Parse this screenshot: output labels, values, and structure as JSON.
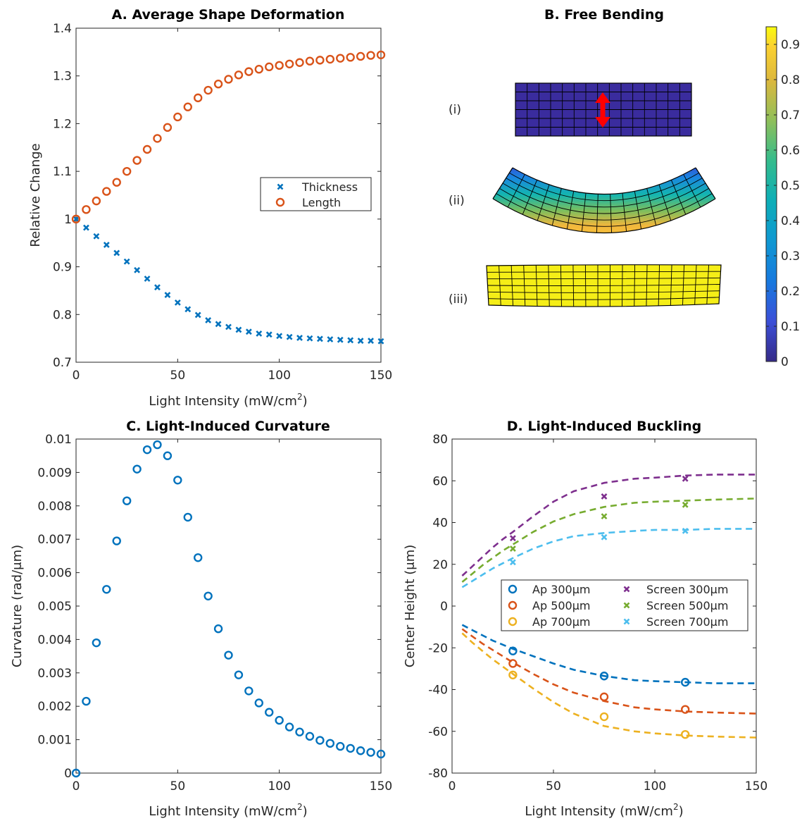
{
  "chart_data": [
    {
      "id": "A",
      "type": "scatter",
      "title": "A. Average Shape Deformation",
      "xlabel": "Light Intensity (mW/cm",
      "xlabel_sup": "2",
      "xlabel_end": ")",
      "ylabel": "Relative Change",
      "xlim": [
        0,
        150
      ],
      "ylim": [
        0.7,
        1.4
      ],
      "xticks": [
        0,
        50,
        100,
        150
      ],
      "yticks": [
        0.7,
        0.8,
        0.9,
        1,
        1.1,
        1.2,
        1.3,
        1.4
      ],
      "ytick_labels": [
        "0.7",
        "0.8",
        "0.9",
        "1",
        "1.1",
        "1.2",
        "1.3",
        "1.4"
      ],
      "legend_position": "right",
      "series": [
        {
          "name": "Thickness",
          "marker": "x",
          "color": "#0072BD",
          "x": [
            0,
            5,
            10,
            15,
            20,
            25,
            30,
            35,
            40,
            45,
            50,
            55,
            60,
            65,
            70,
            75,
            80,
            85,
            90,
            95,
            100,
            105,
            110,
            115,
            120,
            125,
            130,
            135,
            140,
            145,
            150
          ],
          "y": [
            1.0,
            0.982,
            0.964,
            0.946,
            0.929,
            0.911,
            0.893,
            0.875,
            0.857,
            0.841,
            0.825,
            0.811,
            0.799,
            0.788,
            0.78,
            0.774,
            0.768,
            0.764,
            0.76,
            0.758,
            0.755,
            0.753,
            0.751,
            0.75,
            0.749,
            0.748,
            0.747,
            0.746,
            0.745,
            0.745,
            0.744
          ]
        },
        {
          "name": "Length",
          "marker": "o",
          "color": "#D95319",
          "x": [
            0,
            5,
            10,
            15,
            20,
            25,
            30,
            35,
            40,
            45,
            50,
            55,
            60,
            65,
            70,
            75,
            80,
            85,
            90,
            95,
            100,
            105,
            110,
            115,
            120,
            125,
            130,
            135,
            140,
            145,
            150
          ],
          "y": [
            1.0,
            1.02,
            1.038,
            1.058,
            1.077,
            1.1,
            1.123,
            1.146,
            1.169,
            1.192,
            1.214,
            1.235,
            1.254,
            1.27,
            1.283,
            1.293,
            1.302,
            1.309,
            1.314,
            1.319,
            1.322,
            1.325,
            1.328,
            1.331,
            1.333,
            1.335,
            1.337,
            1.339,
            1.341,
            1.343,
            1.344
          ]
        }
      ]
    },
    {
      "id": "B",
      "type": "heatmap",
      "title": "B. Free Bending",
      "rows": [
        {
          "label": "(i)",
          "color_value": 0.0,
          "shape": "flat",
          "arrow": true
        },
        {
          "label": "(ii)",
          "color_gradient": [
            0.0,
            0.9
          ],
          "shape": "bent",
          "arrow": false
        },
        {
          "label": "(iii)",
          "color_value": 0.95,
          "shape": "flat",
          "arrow": false
        }
      ],
      "colorbar": {
        "min": 0,
        "max": 0.95,
        "ticks": [
          0,
          0.1,
          0.2,
          0.3,
          0.4,
          0.5,
          0.6,
          0.7,
          0.8,
          0.9
        ],
        "tick_labels": [
          "0",
          "0.1",
          "0.2",
          "0.3",
          "0.4",
          "0.5",
          "0.6",
          "0.7",
          "0.8",
          "0.9"
        ],
        "colormap": "parula"
      }
    },
    {
      "id": "C",
      "type": "scatter",
      "title": "C.  Light-Induced Curvature",
      "xlabel": "Light Intensity (mW/cm",
      "xlabel_sup": "2",
      "xlabel_end": ")",
      "ylabel": "Curvature (rad/μm)",
      "xlim": [
        0,
        150
      ],
      "ylim": [
        0,
        0.01
      ],
      "xticks": [
        0,
        50,
        100,
        150
      ],
      "yticks": [
        0,
        0.001,
        0.002,
        0.003,
        0.004,
        0.005,
        0.006,
        0.007,
        0.008,
        0.009,
        0.01
      ],
      "ytick_labels": [
        "0",
        "0.001",
        "0.002",
        "0.003",
        "0.004",
        "0.005",
        "0.006",
        "0.007",
        "0.008",
        "0.009",
        "0.01"
      ],
      "series": [
        {
          "marker": "o",
          "color": "#0072BD",
          "x": [
            0,
            5,
            10,
            15,
            20,
            25,
            30,
            35,
            40,
            45,
            50,
            55,
            60,
            65,
            70,
            75,
            80,
            85,
            90,
            95,
            100,
            105,
            110,
            115,
            120,
            125,
            130,
            135,
            140,
            145,
            150
          ],
          "y": [
            0.0,
            0.00215,
            0.0039,
            0.0055,
            0.00695,
            0.00815,
            0.0091,
            0.00968,
            0.00983,
            0.0095,
            0.00877,
            0.00766,
            0.00645,
            0.0053,
            0.00432,
            0.00353,
            0.00294,
            0.00246,
            0.0021,
            0.00182,
            0.00158,
            0.00138,
            0.00123,
            0.0011,
            0.00098,
            0.00089,
            0.0008,
            0.00074,
            0.00067,
            0.00062,
            0.00057
          ]
        }
      ]
    },
    {
      "id": "D",
      "type": "line",
      "title": "D.  Light-Induced Buckling",
      "xlabel": "Light Intensity (mW/cm",
      "xlabel_sup": "2",
      "xlabel_end": ")",
      "ylabel": "Center Height (μm)",
      "xlim": [
        0,
        150
      ],
      "ylim": [
        -80,
        80
      ],
      "xticks": [
        0,
        50,
        100,
        150
      ],
      "yticks": [
        -80,
        -60,
        -40,
        -20,
        0,
        20,
        40,
        60,
        80
      ],
      "ytick_labels": [
        "-80",
        "-60",
        "-40",
        "-20",
        "0",
        "20",
        "40",
        "60",
        "80"
      ],
      "legend_position": "center-right",
      "curve_x": [
        5,
        10,
        15,
        20,
        25,
        30,
        40,
        50,
        60,
        75,
        90,
        100,
        115,
        130,
        150
      ],
      "series": [
        {
          "name": "Ap 300μm",
          "marker": "o",
          "color": "#0072BD",
          "points_x": [
            30,
            75,
            115
          ],
          "points_y": [
            -21.5,
            -33.5,
            -36.5
          ],
          "curve_y": [
            -9,
            -11.5,
            -14,
            -16.5,
            -18.5,
            -20.5,
            -24,
            -27.5,
            -30.5,
            -33.5,
            -35.5,
            -36,
            -36.5,
            -37,
            -37
          ]
        },
        {
          "name": "Ap 500μm",
          "marker": "o",
          "color": "#D95319",
          "points_x": [
            30,
            75,
            115
          ],
          "points_y": [
            -27.5,
            -43.5,
            -49.5
          ],
          "curve_y": [
            -11,
            -14.5,
            -18,
            -21,
            -24,
            -27,
            -32.5,
            -37.5,
            -41.5,
            -45.5,
            -48.5,
            -49.5,
            -50.5,
            -51,
            -51.5
          ]
        },
        {
          "name": "Ap 700μm",
          "marker": "o",
          "color": "#EDB120",
          "points_x": [
            30,
            75,
            115
          ],
          "points_y": [
            -33,
            -53,
            -61.5
          ],
          "curve_y": [
            -13,
            -17.5,
            -21.5,
            -25.5,
            -29,
            -32.5,
            -39.5,
            -46,
            -51.5,
            -57.5,
            -60,
            -61,
            -62,
            -62.5,
            -63
          ]
        },
        {
          "name": "Screen 300μm",
          "marker": "x",
          "color": "#7E2F8E",
          "points_x": [
            30,
            75,
            115
          ],
          "points_y": [
            32.5,
            52.5,
            61
          ],
          "curve_y": [
            14.5,
            19,
            23.5,
            28,
            32,
            35.5,
            43,
            50,
            55,
            59,
            61,
            61.5,
            62.5,
            63,
            63
          ]
        },
        {
          "name": "Screen 500μm",
          "marker": "x",
          "color": "#77AC30",
          "points_x": [
            30,
            75,
            115
          ],
          "points_y": [
            27.5,
            43,
            48.5
          ],
          "curve_y": [
            11.5,
            15.5,
            19.5,
            23,
            26.5,
            29.5,
            35.5,
            40.5,
            44,
            47.5,
            49.5,
            50,
            50.5,
            51,
            51.5
          ]
        },
        {
          "name": "Screen 700μm",
          "marker": "x",
          "color": "#4DBEEE",
          "points_x": [
            30,
            75,
            115
          ],
          "points_y": [
            21,
            33,
            36
          ],
          "curve_y": [
            9,
            12,
            15,
            18,
            20.5,
            23,
            27.5,
            31,
            33.5,
            35,
            36,
            36.5,
            36.5,
            37,
            37
          ]
        }
      ]
    }
  ]
}
